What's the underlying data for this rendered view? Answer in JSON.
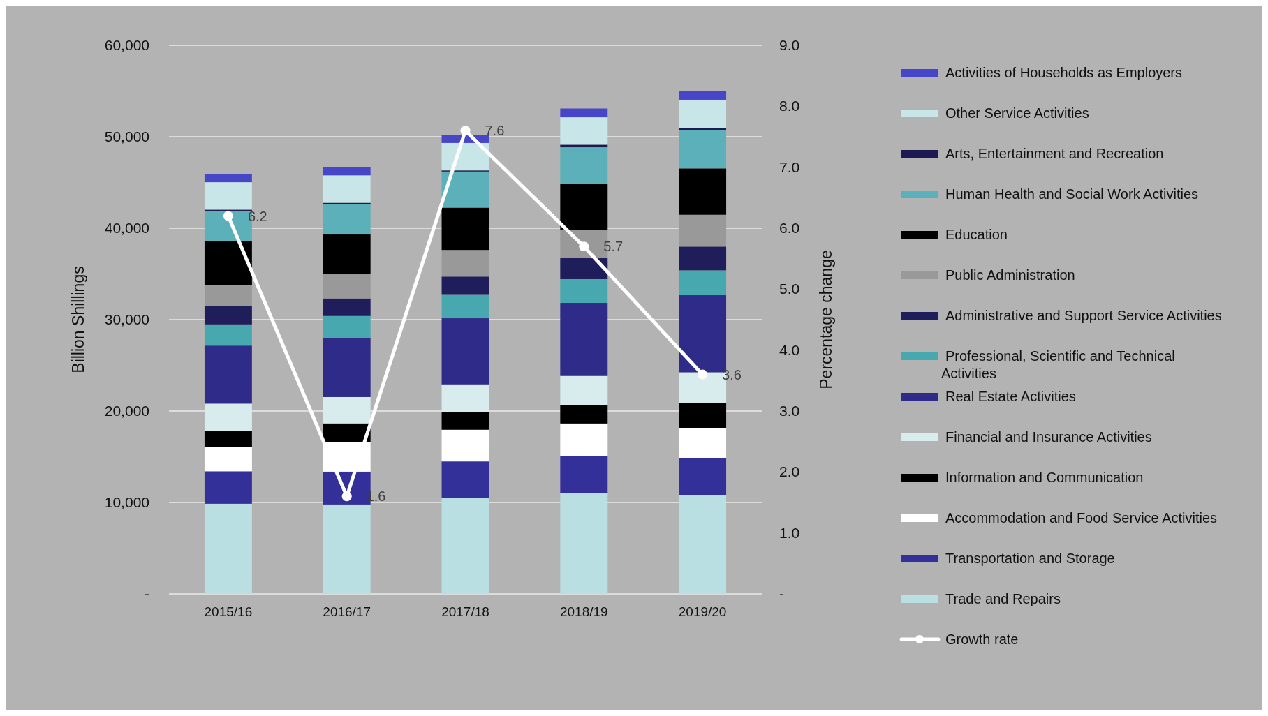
{
  "chart_data": {
    "type": "bar",
    "stacked": true,
    "ylabel": "Billion Shillings",
    "y2label": "Percentage change",
    "categories": [
      "2015/16",
      "2016/17",
      "2017/18",
      "2018/19",
      "2019/20"
    ],
    "ylim": [
      0,
      60000
    ],
    "yticks": [
      {
        "value": 0,
        "label": "-"
      },
      {
        "value": 10000,
        "label": "10,000"
      },
      {
        "value": 20000,
        "label": "20,000"
      },
      {
        "value": 30000,
        "label": "30,000"
      },
      {
        "value": 40000,
        "label": "40,000"
      },
      {
        "value": 50000,
        "label": "50,000"
      },
      {
        "value": 60000,
        "label": "60,000"
      }
    ],
    "y2lim": [
      0,
      9
    ],
    "y2ticks": [
      {
        "value": 0,
        "label": "-"
      },
      {
        "value": 1,
        "label": "1.0"
      },
      {
        "value": 2,
        "label": "2.0"
      },
      {
        "value": 3,
        "label": "3.0"
      },
      {
        "value": 4,
        "label": "4.0"
      },
      {
        "value": 5,
        "label": "5.0"
      },
      {
        "value": 6,
        "label": "6.0"
      },
      {
        "value": 7,
        "label": "7.0"
      },
      {
        "value": 8,
        "label": "8.0"
      },
      {
        "value": 9,
        "label": "9.0"
      }
    ],
    "grid": "y",
    "legend": "right",
    "series": [
      {
        "name": "Trade and Repairs",
        "color": "#b9dfe2",
        "values": [
          9860,
          9780,
          10500,
          11020,
          10820
        ]
      },
      {
        "name": "Transportation and Storage",
        "color": "#34309a",
        "values": [
          3550,
          3590,
          3990,
          4070,
          4030
        ]
      },
      {
        "name": "Accommodation and Food Service Activities",
        "color": "#ffffff",
        "values": [
          2680,
          3200,
          3470,
          3550,
          3320
        ]
      },
      {
        "name": "Information and Communication",
        "color": "#000000",
        "values": [
          1760,
          2080,
          1960,
          2000,
          2680
        ]
      },
      {
        "name": "Financial and Insurance Activities",
        "color": "#d8ecee",
        "values": [
          2960,
          2880,
          3000,
          3200,
          3390
        ]
      },
      {
        "name": "Real Estate Activities",
        "color": "#2e2c88",
        "values": [
          6350,
          6510,
          7230,
          7990,
          8430
        ]
      },
      {
        "name": "Professional, Scientific and Technical Activities",
        "color": "#48a8b0",
        "values": [
          2320,
          2360,
          2560,
          2600,
          2720
        ]
      },
      {
        "name": "Administrative and Support Service Activities",
        "color": "#1f1d5a",
        "values": [
          2000,
          1920,
          2000,
          2360,
          2600
        ]
      },
      {
        "name": "Public Administration",
        "color": "#999999",
        "values": [
          2280,
          2640,
          2910,
          3040,
          3480
        ]
      },
      {
        "name": "Education",
        "color": "#000000",
        "values": [
          4870,
          4350,
          4630,
          4990,
          5070
        ]
      },
      {
        "name": "Human Health and Social Work Activities",
        "color": "#5cb0b9",
        "values": [
          3280,
          3350,
          3950,
          4030,
          4190
        ]
      },
      {
        "name": "Arts, Entertainment and Recreation",
        "color": "#1c1a50",
        "values": [
          120,
          120,
          120,
          280,
          200
        ]
      },
      {
        "name": "Other Service Activities",
        "color": "#c8e6e8",
        "values": [
          3000,
          3000,
          3000,
          3000,
          3120
        ]
      },
      {
        "name": "Activities of Households as Employers",
        "color": "#4846c8",
        "values": [
          880,
          880,
          880,
          960,
          960
        ]
      },
      {
        "name": "Growth rate",
        "type": "line",
        "axis": "y2",
        "color": "#ffffff",
        "marker": "circle",
        "line_style": "solid",
        "values": [
          6.2,
          1.6,
          7.6,
          5.7,
          3.6
        ],
        "value_labels": [
          "6.2",
          "1.6",
          "7.6",
          "5.7",
          "3.6"
        ]
      }
    ]
  }
}
